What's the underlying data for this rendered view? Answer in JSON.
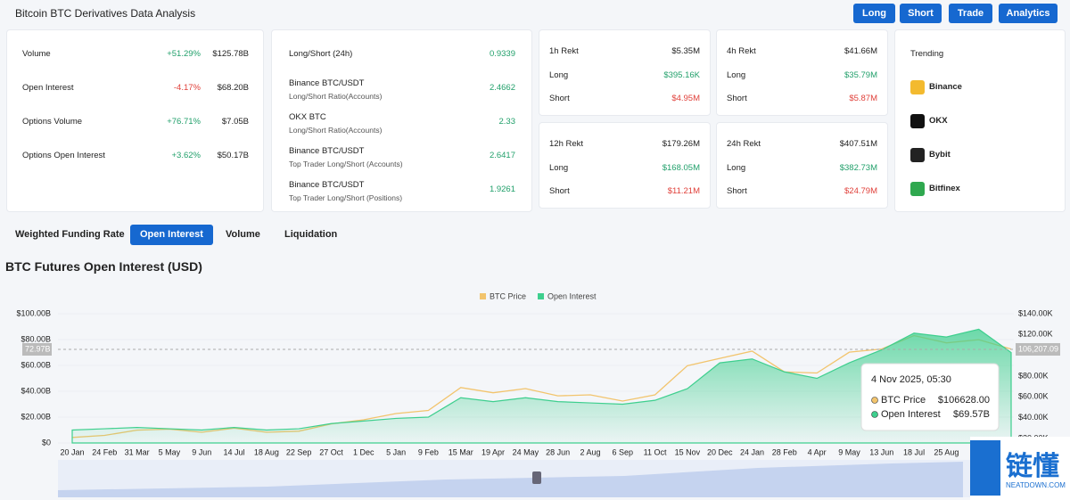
{
  "header": {
    "title": "Bitcoin BTC Derivatives Data Analysis",
    "buttons": [
      "Long",
      "Short",
      "Trade",
      "Analytics"
    ]
  },
  "overview": [
    {
      "label": "Volume",
      "change": "+51.29%",
      "value": "$125.78B"
    },
    {
      "label": "Open Interest",
      "change": "-4.17%",
      "value": "$68.20B"
    },
    {
      "label": "Options Volume",
      "change": "+76.71%",
      "value": "$7.05B"
    },
    {
      "label": "Options Open Interest",
      "change": "+3.62%",
      "value": "$50.17B"
    }
  ],
  "ratios": [
    {
      "label": "Long/Short (24h)",
      "value": "0.9339"
    },
    {
      "label": "Binance BTC/USDT",
      "sublabel": "Long/Short Ratio(Accounts)",
      "value": "2.4662"
    },
    {
      "label": "OKX BTC",
      "sublabel": "Long/Short Ratio(Accounts)",
      "value": "2.33"
    },
    {
      "label": "Binance BTC/USDT",
      "sublabel": "Top Trader Long/Short (Accounts)",
      "value": "2.6417"
    },
    {
      "label": "Binance BTC/USDT",
      "sublabel": "Top Trader Long/Short (Positions)",
      "value": "1.9261"
    }
  ],
  "rekt": [
    {
      "title": "1h Rekt",
      "total": "$5.35M",
      "long_label": "Long",
      "long": "$395.16K",
      "short_label": "Short",
      "short": "$4.95M"
    },
    {
      "title": "4h Rekt",
      "total": "$41.66M",
      "long_label": "Long",
      "long": "$35.79M",
      "short_label": "Short",
      "short": "$5.87M"
    },
    {
      "title": "12h Rekt",
      "total": "$179.26M",
      "long_label": "Long",
      "long": "$168.05M",
      "short_label": "Short",
      "short": "$11.21M"
    },
    {
      "title": "24h Rekt",
      "total": "$407.51M",
      "long_label": "Long",
      "long": "$382.73M",
      "short_label": "Short",
      "short": "$24.79M"
    }
  ],
  "trending": {
    "title": "Trending",
    "items": [
      "Binance",
      "OKX",
      "Bybit",
      "Bitfinex"
    ]
  },
  "tabs": {
    "items": [
      "Weighted Funding Rate",
      "Open Interest",
      "Volume",
      "Liquidation"
    ],
    "active": 1
  },
  "watermark": {
    "title": "链懂",
    "subtitle": "NEATDOWN.COM"
  },
  "chart_data": {
    "type": "line",
    "title": "BTC Futures Open Interest (USD)",
    "x": [
      "20 Jan",
      "24 Feb",
      "31 Mar",
      "5 May",
      "9 Jun",
      "14 Jul",
      "18 Aug",
      "22 Sep",
      "27 Oct",
      "1 Dec",
      "5 Jan",
      "9 Feb",
      "15 Mar",
      "19 Apr",
      "24 May",
      "28 Jun",
      "2 Aug",
      "6 Sep",
      "11 Oct",
      "15 Nov",
      "20 Dec",
      "24 Jan",
      "28 Feb",
      "4 Apr",
      "9 May",
      "13 Jun",
      "18 Jul",
      "25 Aug",
      null,
      null
    ],
    "series": [
      {
        "name": "BTC Price",
        "color": "#f2c46d",
        "axis": "y2",
        "values": [
          21,
          23,
          28,
          29,
          26,
          30,
          26,
          27,
          34,
          38,
          44,
          47,
          69,
          64,
          68,
          61,
          62,
          56,
          62,
          90,
          97,
          104,
          84,
          83,
          103,
          106,
          119,
          112,
          115,
          106
        ]
      },
      {
        "name": "Open Interest",
        "color": "#3ecf8e",
        "values": [
          10,
          11,
          12,
          11,
          10,
          12,
          10,
          11,
          15,
          17,
          19,
          20,
          35,
          32,
          35,
          32,
          31,
          30,
          33,
          42,
          62,
          65,
          55,
          50,
          62,
          72,
          85,
          82,
          88,
          70
        ]
      }
    ],
    "ylim": [
      0,
      100
    ],
    "yticks": [
      {
        "value": 0,
        "label": "$0"
      },
      {
        "value": 20,
        "label": "$20.00B"
      },
      {
        "value": 40,
        "label": "$40.00B"
      },
      {
        "value": 60,
        "label": "$60.00B"
      },
      {
        "value": 80,
        "label": "$80.00B"
      },
      {
        "value": 100,
        "label": "$100.00B"
      }
    ],
    "y2lim": [
      15.7,
      140
    ],
    "y2ticks": [
      {
        "value": 20,
        "label": "$20.00K"
      },
      {
        "value": 40,
        "label": "$40.00K"
      },
      {
        "value": 60,
        "label": "$60.00K"
      },
      {
        "value": 80,
        "label": "$80.00K"
      },
      {
        "value": 120,
        "label": "$120.00K"
      },
      {
        "value": 140,
        "label": "$140.00K"
      }
    ],
    "crosshair": {
      "y_label": "72.97B",
      "y2_label": "106,207.09"
    },
    "tooltip": {
      "title": "4 Nov 2025, 05:30",
      "rows": [
        {
          "name": "BTC Price",
          "value": "$106628.00"
        },
        {
          "name": "Open Interest",
          "value": "$69.57B"
        }
      ]
    }
  }
}
